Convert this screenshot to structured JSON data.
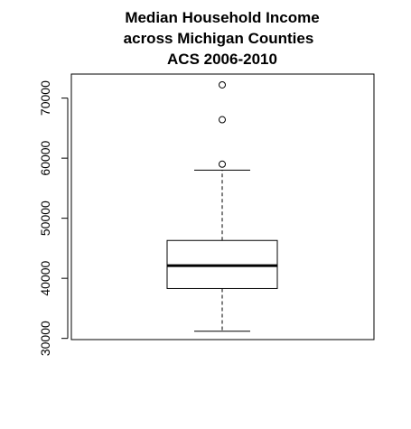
{
  "chart_data": {
    "type": "boxplot",
    "title": [
      "Median Household Income",
      "across Michigan Counties",
      "ACS 2006-2010"
    ],
    "xlabel": "",
    "ylabel": "",
    "ylim": [
      29800,
      74000
    ],
    "y_ticks": [
      30000,
      40000,
      50000,
      60000,
      70000
    ],
    "y_tick_labels": [
      "30000",
      "40000",
      "50000",
      "60000",
      "70000"
    ],
    "box": {
      "whisker_low": 31200,
      "q1": 38300,
      "median": 42100,
      "q3": 46300,
      "whisker_high": 58000,
      "outliers": [
        59000,
        66400,
        72200
      ]
    },
    "colors": {
      "stroke": "#000000",
      "background": "#ffffff"
    }
  }
}
